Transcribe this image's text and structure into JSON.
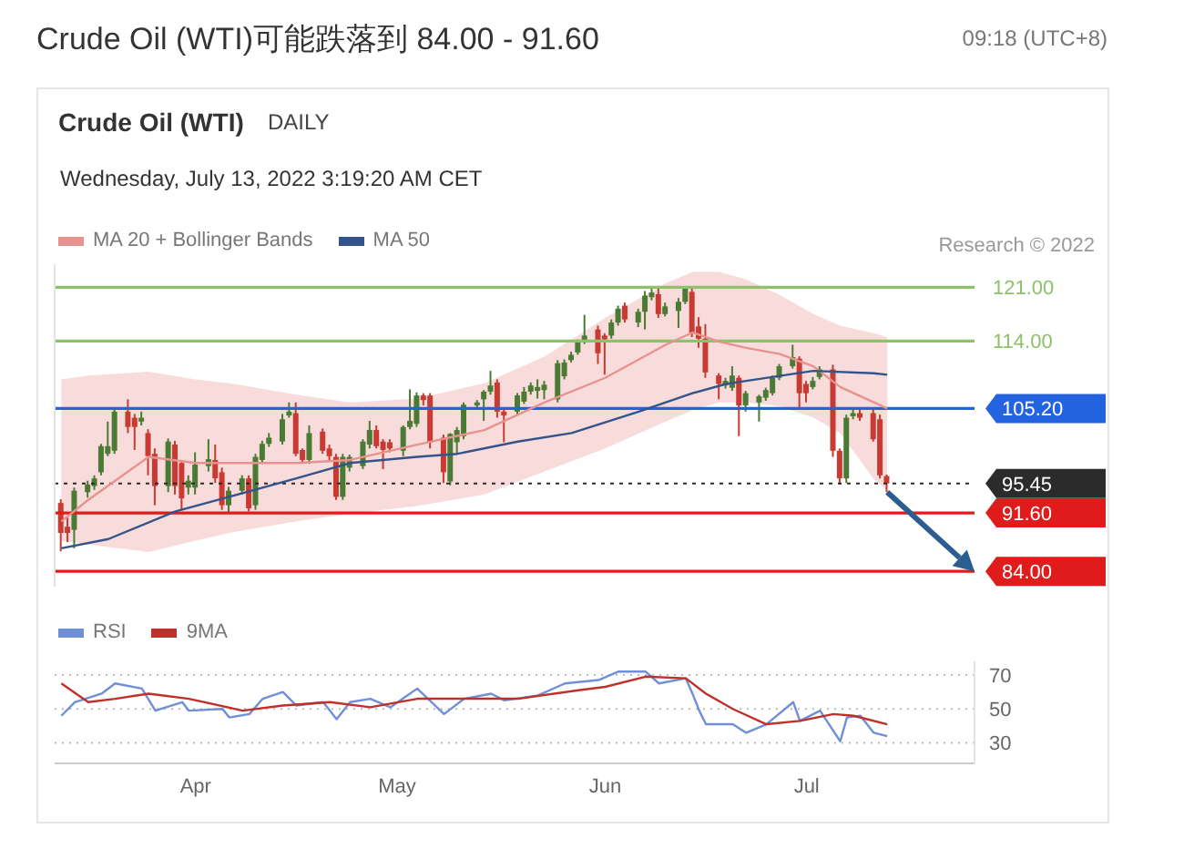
{
  "chart_data": [
    {
      "type": "candlestick",
      "title": "Crude Oil (WTI)可能跌落到 84.00 - 91.60",
      "subtitle": "Wednesday, July 13, 2022 3:19:20 AM CET",
      "annotations": [
        "09:18 (UTC+8)",
        "Crude Oil (WTI)",
        "DAILY",
        "Research © 2022"
      ],
      "x": [
        "2022-03-12",
        "2022-03-13",
        "2022-03-14",
        "2022-03-16",
        "2022-03-17",
        "2022-03-18",
        "2022-03-19",
        "2022-03-20",
        "2022-03-22",
        "2022-03-23",
        "2022-03-24",
        "2022-03-25",
        "2022-03-26",
        "2022-03-28",
        "2022-03-29",
        "2022-03-30",
        "2022-03-31",
        "2022-04-01",
        "2022-04-03",
        "2022-04-04",
        "2022-04-05",
        "2022-04-06",
        "2022-04-08",
        "2022-04-09",
        "2022-04-10",
        "2022-04-11",
        "2022-04-12",
        "2022-04-14",
        "2022-04-15",
        "2022-04-16",
        "2022-04-17",
        "2022-04-18",
        "2022-04-20",
        "2022-04-21",
        "2022-04-22",
        "2022-04-23",
        "2022-04-24",
        "2022-04-26",
        "2022-04-27",
        "2022-04-28",
        "2022-04-29",
        "2022-04-30",
        "2022-05-02",
        "2022-05-03",
        "2022-05-04",
        "2022-05-05",
        "2022-05-06",
        "2022-05-08",
        "2022-05-09",
        "2022-05-10",
        "2022-05-11",
        "2022-05-13",
        "2022-05-14",
        "2022-05-15",
        "2022-05-16",
        "2022-05-17",
        "2022-05-19",
        "2022-05-20",
        "2022-05-21",
        "2022-05-22",
        "2022-05-23",
        "2022-05-25",
        "2022-05-26",
        "2022-05-27",
        "2022-05-28",
        "2022-05-29",
        "2022-05-31",
        "2022-06-01",
        "2022-06-02",
        "2022-06-03",
        "2022-06-04",
        "2022-06-06",
        "2022-06-07",
        "2022-06-08",
        "2022-06-09",
        "2022-06-10",
        "2022-06-12",
        "2022-06-13",
        "2022-06-14",
        "2022-06-15",
        "2022-06-16",
        "2022-06-18",
        "2022-06-19",
        "2022-06-20",
        "2022-06-21",
        "2022-06-22",
        "2022-06-24",
        "2022-06-25",
        "2022-06-26",
        "2022-06-27",
        "2022-06-29",
        "2022-06-30",
        "2022-07-01",
        "2022-07-02",
        "2022-07-03",
        "2022-07-05",
        "2022-07-06",
        "2022-07-07",
        "2022-07-08",
        "2022-07-09",
        "2022-07-11",
        "2022-07-12",
        "2022-07-13"
      ],
      "ohlc": [
        [
          92.9,
          93.4,
          86.6,
          89.0
        ],
        [
          89.8,
          91.0,
          87.8,
          89.0
        ],
        [
          89.4,
          94.9,
          87.0,
          94.5
        ],
        [
          94.3,
          95.8,
          93.6,
          95.3
        ],
        [
          95.1,
          96.5,
          94.6,
          96.1
        ],
        [
          96.9,
          100.6,
          96.5,
          100.3
        ],
        [
          99.3,
          103.5,
          99.0,
          100.3
        ],
        [
          99.7,
          105.2,
          99.3,
          104.8
        ],
        [
          104.8,
          106.4,
          102.0,
          102.8
        ],
        [
          104.0,
          104.5,
          99.8,
          102.8
        ],
        [
          103.5,
          104.8,
          103.0,
          104.0
        ],
        [
          102.0,
          102.5,
          96.5,
          99.0
        ],
        [
          99.3,
          100.0,
          92.6,
          95.1
        ],
        [
          95.1,
          101.3,
          94.3,
          100.9
        ],
        [
          100.5,
          101.0,
          94.0,
          95.1
        ],
        [
          98.1,
          98.5,
          92.0,
          93.5
        ],
        [
          94.9,
          96.5,
          94.0,
          95.8
        ],
        [
          94.9,
          99.5,
          94.0,
          97.9
        ],
        [
          97.7,
          101.2,
          97.0,
          98.6
        ],
        [
          98.5,
          100.5,
          95.5,
          96.1
        ],
        [
          96.9,
          97.5,
          92.0,
          92.6
        ],
        [
          92.6,
          95.0,
          91.7,
          94.5
        ],
        [
          94.5,
          96.5,
          94.0,
          96.1
        ],
        [
          96.1,
          96.5,
          91.8,
          92.2
        ],
        [
          92.6,
          99.3,
          92.0,
          98.9
        ],
        [
          98.5,
          101.0,
          98.0,
          100.6
        ],
        [
          100.6,
          102.0,
          100.2,
          101.4
        ],
        [
          100.9,
          104.5,
          100.5,
          103.8
        ],
        [
          104.3,
          106.0,
          104.0,
          104.8
        ],
        [
          104.6,
          106.0,
          99.0,
          99.3
        ],
        [
          99.8,
          100.0,
          98.0,
          98.5
        ],
        [
          98.5,
          103.0,
          98.0,
          102.0
        ],
        [
          102.2,
          102.6,
          99.3,
          99.7
        ],
        [
          100.0,
          100.5,
          98.5,
          99.0
        ],
        [
          98.9,
          99.3,
          93.3,
          93.7
        ],
        [
          93.7,
          99.3,
          93.3,
          98.9
        ],
        [
          97.5,
          99.2,
          97.0,
          98.9
        ],
        [
          97.7,
          101.2,
          97.3,
          100.9
        ],
        [
          100.5,
          103.6,
          100.0,
          102.4
        ],
        [
          102.4,
          103.0,
          100.0,
          100.3
        ],
        [
          100.9,
          101.2,
          97.3,
          99.8
        ],
        [
          100.8,
          101.2,
          99.5,
          100.0
        ],
        [
          99.7,
          103.0,
          99.0,
          102.8
        ],
        [
          102.8,
          107.7,
          102.5,
          103.6
        ],
        [
          103.2,
          107.3,
          102.8,
          106.9
        ],
        [
          106.9,
          107.2,
          105.6,
          106.3
        ],
        [
          106.9,
          107.2,
          100.0,
          100.8
        ],
        [
          101.4,
          101.8,
          95.5,
          96.9
        ],
        [
          95.7,
          102.0,
          95.2,
          101.9
        ],
        [
          100.8,
          102.8,
          99.3,
          102.4
        ],
        [
          101.6,
          106.0,
          101.2,
          105.7
        ],
        [
          105.6,
          106.3,
          105.2,
          106.0
        ],
        [
          106.4,
          107.6,
          103.6,
          107.4
        ],
        [
          107.4,
          110.1,
          107.0,
          108.2
        ],
        [
          108.6,
          109.0,
          104.0,
          104.8
        ],
        [
          104.8,
          105.2,
          100.8,
          104.3
        ],
        [
          104.8,
          107.2,
          104.3,
          106.9
        ],
        [
          106.1,
          108.0,
          105.8,
          107.4
        ],
        [
          107.4,
          108.6,
          107.0,
          108.2
        ],
        [
          107.5,
          109.0,
          106.5,
          108.0
        ],
        [
          107.6,
          108.8,
          106.4,
          108.3
        ],
        [
          106.4,
          111.5,
          106.0,
          111.1
        ],
        [
          109.4,
          111.6,
          109.0,
          111.2
        ],
        [
          111.5,
          112.6,
          111.2,
          112.2
        ],
        [
          112.5,
          114.2,
          112.2,
          113.9
        ],
        [
          113.9,
          117.4,
          113.6,
          114.7
        ],
        [
          115.5,
          116.0,
          111.0,
          112.4
        ],
        [
          114.7,
          115.0,
          109.6,
          114.2
        ],
        [
          114.7,
          116.8,
          114.3,
          116.4
        ],
        [
          116.4,
          118.6,
          116.0,
          118.2
        ],
        [
          118.6,
          119.0,
          116.4,
          116.8
        ],
        [
          116.4,
          118.2,
          115.8,
          117.8
        ],
        [
          117.8,
          120.5,
          115.5,
          119.9
        ],
        [
          119.7,
          120.8,
          119.3,
          120.3
        ],
        [
          120.1,
          120.8,
          117.0,
          117.5
        ],
        [
          117.5,
          119.0,
          117.2,
          118.5
        ],
        [
          117.9,
          119.6,
          115.7,
          119.1
        ],
        [
          119.1,
          121.1,
          118.8,
          120.9
        ],
        [
          120.4,
          120.9,
          114.5,
          115.1
        ],
        [
          115.9,
          117.1,
          113.1,
          114.3
        ],
        [
          114.3,
          116.2,
          109.2,
          109.9
        ],
        [
          109.5,
          109.8,
          106.4,
          108.4
        ],
        [
          108.2,
          109.2,
          107.8,
          108.8
        ],
        [
          107.9,
          110.7,
          107.5,
          109.5
        ],
        [
          109.2,
          109.5,
          101.6,
          105.6
        ],
        [
          105.6,
          107.5,
          104.8,
          107.2
        ],
        [
          106.0,
          107.0,
          103.5,
          106.8
        ],
        [
          106.6,
          107.9,
          106.2,
          107.6
        ],
        [
          107.2,
          109.5,
          106.9,
          109.2
        ],
        [
          109.2,
          111.0,
          108.9,
          110.7
        ],
        [
          110.7,
          113.5,
          110.4,
          111.9
        ],
        [
          111.7,
          112.0,
          105.2,
          107.2
        ],
        [
          108.4,
          108.8,
          106.0,
          107.2
        ],
        [
          108.0,
          109.3,
          107.7,
          108.8
        ],
        [
          109.3,
          110.7,
          109.0,
          110.3
        ],
        [
          110.3,
          110.9,
          98.9,
          99.7
        ],
        [
          99.7,
          100.0,
          95.3,
          96.1
        ],
        [
          96.1,
          104.4,
          95.5,
          104.0
        ],
        [
          104.2,
          105.2,
          103.8,
          104.6
        ],
        [
          104.6,
          105.2,
          103.6,
          104.0
        ],
        [
          104.6,
          105.2,
          100.9,
          101.2
        ],
        [
          103.8,
          104.4,
          96.1,
          96.5
        ],
        [
          96.4,
          96.6,
          94.3,
          95.45
        ]
      ],
      "colors": [
        "#c83a32",
        "#c83a32",
        "#4a7a34",
        "#4a7a34",
        "#4a7a34",
        "#4a7a34",
        "#4a7a34",
        "#4a7a34",
        "#c83a32",
        "#c83a32",
        "#4a7a34",
        "#c83a32",
        "#c83a32",
        "#4a7a34",
        "#c83a32",
        "#c83a32",
        "#4a7a34",
        "#4a7a34",
        "#4a7a34",
        "#c83a32",
        "#c83a32",
        "#4a7a34",
        "#4a7a34",
        "#c83a32",
        "#4a7a34",
        "#4a7a34",
        "#4a7a34",
        "#4a7a34",
        "#4a7a34",
        "#c83a32",
        "#c83a32",
        "#4a7a34",
        "#c83a32",
        "#c83a32",
        "#c83a32",
        "#4a7a34",
        "#4a7a34",
        "#4a7a34",
        "#4a7a34",
        "#c83a32",
        "#c83a32",
        "#c83a32",
        "#4a7a34",
        "#4a7a34",
        "#4a7a34",
        "#c83a32",
        "#c83a32",
        "#c83a32",
        "#4a7a34",
        "#4a7a34",
        "#4a7a34",
        "#4a7a34",
        "#4a7a34",
        "#4a7a34",
        "#c83a32",
        "#c83a32",
        "#4a7a34",
        "#4a7a34",
        "#4a7a34",
        "#4a7a34",
        "#4a7a34",
        "#4a7a34",
        "#4a7a34",
        "#4a7a34",
        "#4a7a34",
        "#4a7a34",
        "#c83a32",
        "#c83a32",
        "#4a7a34",
        "#4a7a34",
        "#c83a32",
        "#4a7a34",
        "#4a7a34",
        "#4a7a34",
        "#c83a32",
        "#4a7a34",
        "#4a7a34",
        "#4a7a34",
        "#c83a32",
        "#c83a32",
        "#c83a32",
        "#c83a32",
        "#4a7a34",
        "#4a7a34",
        "#c83a32",
        "#4a7a34",
        "#4a7a34",
        "#4a7a34",
        "#4a7a34",
        "#4a7a34",
        "#4a7a34",
        "#c83a32",
        "#c83a32",
        "#4a7a34",
        "#4a7a34",
        "#c83a32",
        "#c83a32",
        "#4a7a34",
        "#4a7a34",
        "#c83a32",
        "#c83a32",
        "#c83a32",
        "#c83a32"
      ],
      "series": [
        {
          "type": "line",
          "name": "MA 20 + Bollinger Bands",
          "color": "#e8928f",
          "x": [
            "2022-03-12",
            "2022-03-16",
            "2022-03-25",
            "2022-04-01",
            "2022-04-06",
            "2022-04-16",
            "2022-04-24",
            "2022-05-04",
            "2022-05-14",
            "2022-05-23",
            "2022-06-01",
            "2022-06-10",
            "2022-06-14",
            "2022-06-18",
            "2022-06-22",
            "2022-06-27",
            "2022-07-02",
            "2022-07-06",
            "2022-07-11",
            "2022-07-13"
          ],
          "values": [
            90.5,
            93.3,
            98.9,
            98.1,
            98.1,
            98.1,
            98.5,
            100.5,
            102.4,
            106.0,
            109.2,
            113.5,
            115.1,
            113.9,
            113.1,
            112.3,
            110.7,
            108.0,
            106.0,
            105.2
          ],
          "lower": [
            88,
            87.5,
            86.5,
            88,
            89,
            90.5,
            91.5,
            92.5,
            94,
            97,
            100,
            103.5,
            105,
            106,
            106,
            105.5,
            104,
            102,
            96,
            94.5
          ],
          "upper": [
            109,
            109.5,
            110,
            109,
            108.5,
            107,
            106,
            106.5,
            108.5,
            112,
            117,
            121.5,
            123,
            123,
            122,
            120,
            117.5,
            116,
            115,
            114.5
          ]
        },
        {
          "type": "line",
          "name": "MA 50",
          "color": "#34538a",
          "x": [
            "2022-03-12",
            "2022-03-19",
            "2022-03-29",
            "2022-04-06",
            "2022-04-16",
            "2022-04-24",
            "2022-05-04",
            "2022-05-10",
            "2022-05-19",
            "2022-05-27",
            "2022-06-06",
            "2022-06-14",
            "2022-06-19",
            "2022-06-22",
            "2022-07-02",
            "2022-07-11",
            "2022-07-13"
          ],
          "values": [
            87.0,
            88.2,
            91.8,
            93.7,
            96.1,
            98.1,
            98.9,
            99.3,
            100.9,
            102.0,
            104.8,
            107.2,
            108.4,
            108.8,
            110.1,
            109.8,
            109.6
          ]
        }
      ],
      "xlim": [
        "2022-03-11",
        "2022-07-26"
      ],
      "ylim": [
        82,
        124
      ],
      "ref_lines": [
        {
          "axis": "y",
          "value": 121,
          "label": "121.00",
          "color": "#8dc26b"
        },
        {
          "axis": "y",
          "value": 114,
          "label": "114.00",
          "color": "#8dc26b"
        },
        {
          "axis": "y",
          "value": 105.2,
          "label": "105.20",
          "color": "#2463e0"
        },
        {
          "axis": "y",
          "value": 95.45,
          "label": "95.45",
          "color": "#2b2b2b",
          "line_style": "dotted"
        },
        {
          "axis": "y",
          "value": 91.6,
          "label": "91.60",
          "color": "#e01b1b"
        },
        {
          "axis": "y",
          "value": 84,
          "label": "84.00",
          "color": "#e01b1b"
        }
      ],
      "legend": "top left",
      "tick_labels": false
    },
    {
      "type": "line",
      "series": [
        {
          "name": "RSI",
          "color": "#6f8fd6",
          "x": [
            "2022-03-12",
            "2022-03-14",
            "2022-03-18",
            "2022-03-20",
            "2022-03-24",
            "2022-03-26",
            "2022-03-30",
            "2022-03-31",
            "2022-04-05",
            "2022-04-06",
            "2022-04-09",
            "2022-04-11",
            "2022-04-14",
            "2022-04-16",
            "2022-04-20",
            "2022-04-22",
            "2022-04-24",
            "2022-04-27",
            "2022-04-30",
            "2022-05-04",
            "2022-05-08",
            "2022-05-11",
            "2022-05-15",
            "2022-05-17",
            "2022-05-22",
            "2022-05-26",
            "2022-05-31",
            "2022-06-03",
            "2022-06-07",
            "2022-06-09",
            "2022-06-13",
            "2022-06-14",
            "2022-06-15",
            "2022-06-16",
            "2022-06-20",
            "2022-06-22",
            "2022-06-25",
            "2022-06-29",
            "2022-06-30",
            "2022-07-03",
            "2022-07-06",
            "2022-07-07",
            "2022-07-09",
            "2022-07-11",
            "2022-07-13"
          ],
          "values": [
            46,
            54,
            59,
            65,
            62,
            49,
            54,
            49,
            50,
            45,
            47,
            56,
            60,
            52,
            54,
            44,
            54,
            56,
            51,
            62,
            47,
            56,
            59,
            55,
            58,
            65,
            67,
            72,
            72,
            65,
            68,
            59,
            49,
            41,
            41,
            36,
            41,
            54,
            43,
            49,
            31,
            45,
            46,
            36,
            34
          ]
        },
        {
          "name": "9MA",
          "color": "#c0302b",
          "x": [
            "2022-03-12",
            "2022-03-16",
            "2022-03-20",
            "2022-03-25",
            "2022-03-31",
            "2022-04-08",
            "2022-04-14",
            "2022-04-21",
            "2022-04-27",
            "2022-05-04",
            "2022-05-11",
            "2022-05-19",
            "2022-05-28",
            "2022-06-01",
            "2022-06-07",
            "2022-06-13",
            "2022-06-16",
            "2022-06-20",
            "2022-06-25",
            "2022-06-30",
            "2022-07-05",
            "2022-07-08",
            "2022-07-13"
          ],
          "values": [
            65,
            54,
            56,
            59,
            56,
            49,
            52,
            54,
            51,
            56,
            56,
            56,
            61,
            63,
            69,
            68,
            59,
            50,
            41,
            43,
            47,
            46,
            41
          ]
        }
      ],
      "xlim": [
        "2022-03-11",
        "2022-07-26"
      ],
      "xticks": [
        {
          "value": "2022-04-01",
          "label": "Apr"
        },
        {
          "value": "2022-05-01",
          "label": "May"
        },
        {
          "value": "2022-06-01",
          "label": "Jun"
        },
        {
          "value": "2022-07-01",
          "label": "Jul"
        }
      ],
      "ylim": [
        18,
        78
      ],
      "yticks": [
        30,
        50,
        70
      ],
      "grid": "y",
      "legend": "top left"
    }
  ]
}
